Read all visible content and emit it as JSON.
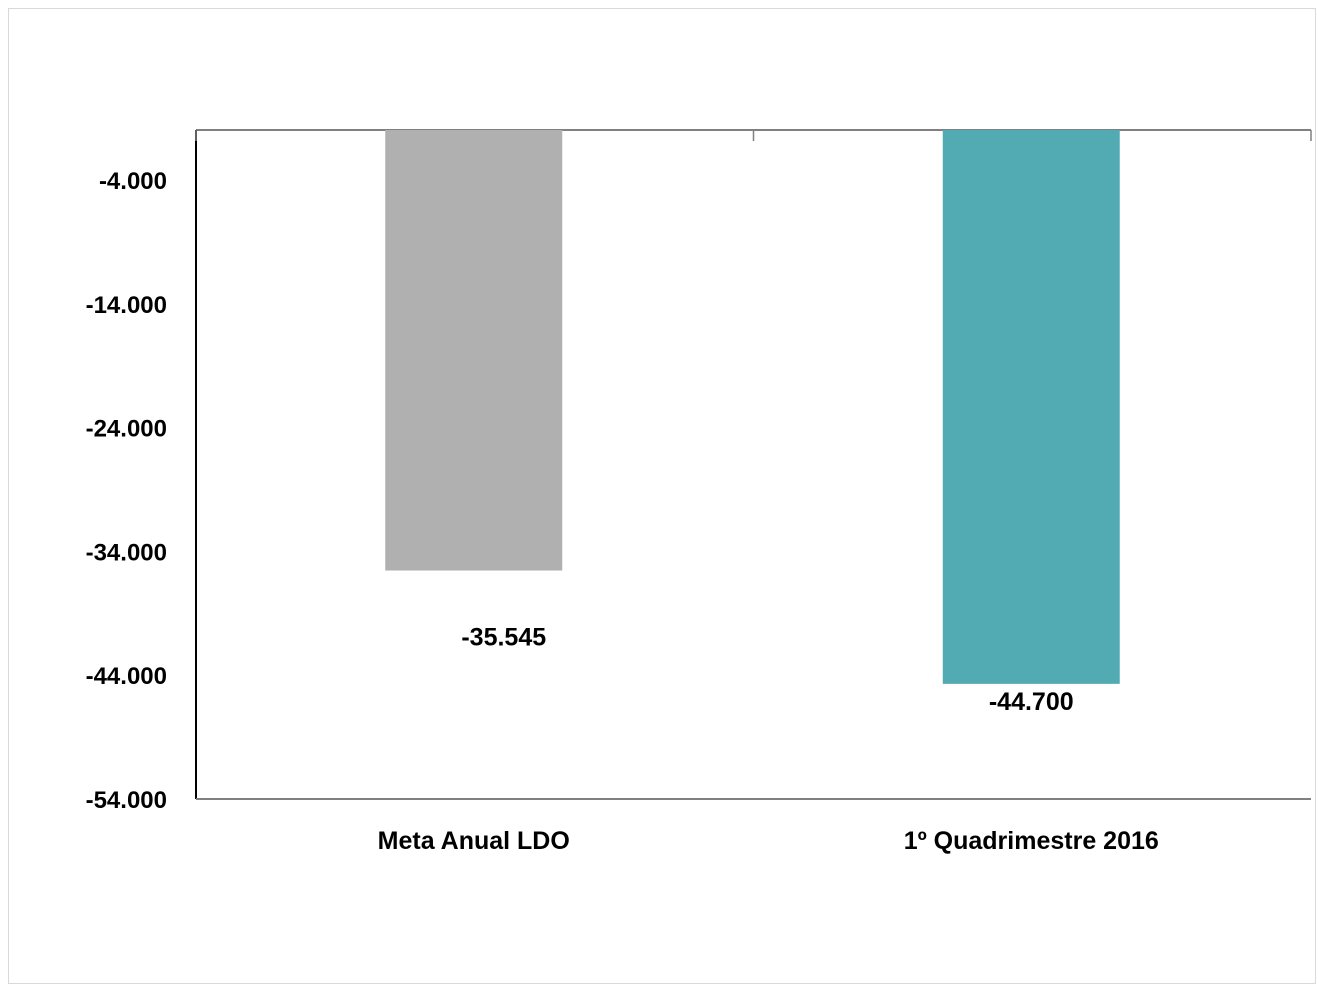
{
  "chart_data": {
    "type": "bar",
    "categories": [
      "Meta Anual LDO",
      "1º Quadrimestre 2016"
    ],
    "values": [
      -35545,
      -44700
    ],
    "data_labels": [
      "-35.545",
      "-44.700"
    ],
    "colors": [
      "#b0b0b0",
      "#52abb2"
    ],
    "ylim": [
      -54000,
      6000
    ],
    "y_ticks": [
      -4000,
      -14000,
      -24000,
      -34000,
      -44000,
      -54000
    ],
    "y_tick_labels": [
      "-4.000",
      "-14.000",
      "-24.000",
      "-34.000",
      "-44.000",
      "-54.000"
    ],
    "grid": false,
    "legend": "none",
    "title": "",
    "xlabel": "",
    "ylabel": ""
  }
}
